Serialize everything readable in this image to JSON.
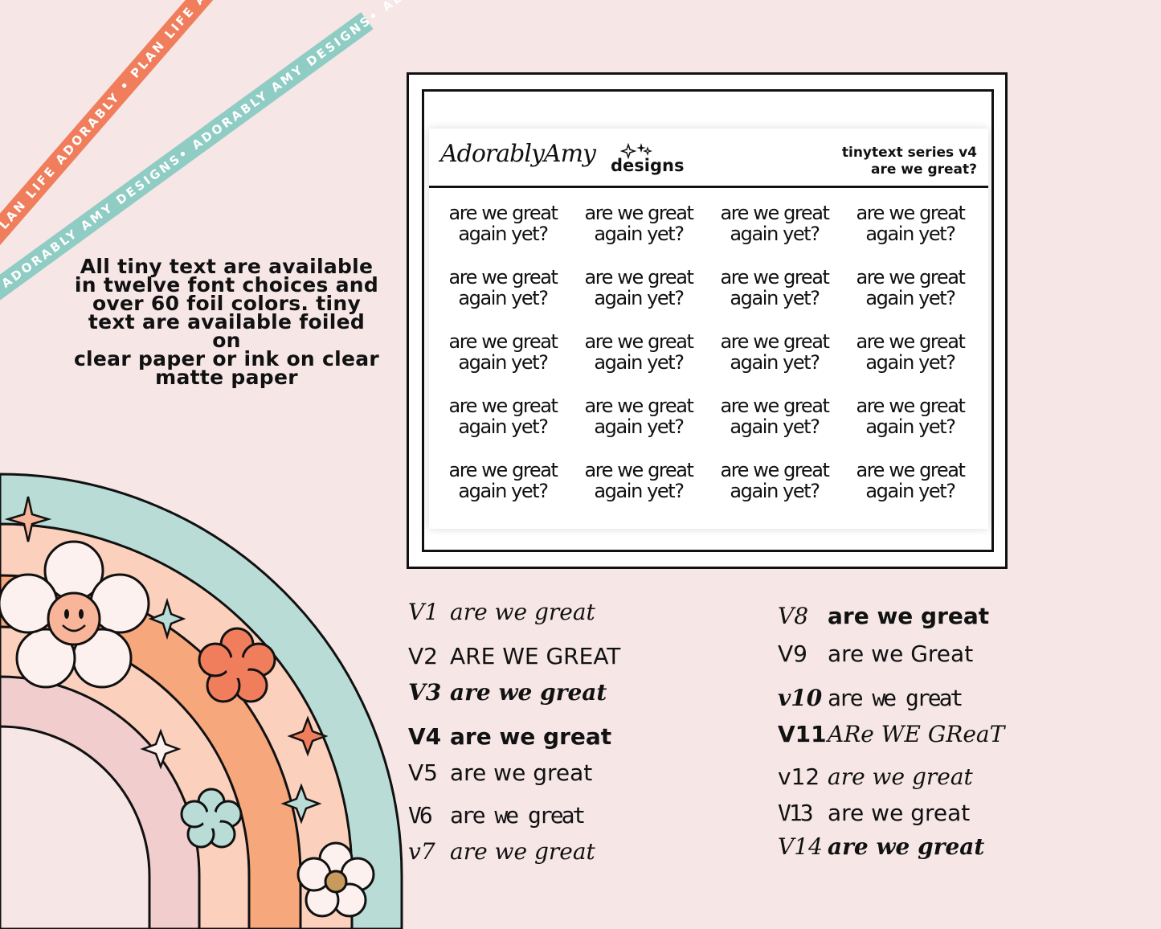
{
  "ribbons": {
    "orange": "PLAN LIFE ADORABLY • PLAN LIFE ADORABLY • PLAN LIFE ADORABLY",
    "teal": "ADORABLY AMY DESIGNS• ADORABLY AMY DESIGNS• ADORABLY AMY DESIGNS"
  },
  "info_text": "All tiny text are available\nin twelve font choices and\nover 60 foil colors.  tiny\ntext are available foiled on\nclear paper or ink on clear\nmatte paper",
  "sheet": {
    "logo_script": "AdorablyAmy",
    "logo_word": "designs",
    "series_line1": "tinytext series v4",
    "series_line2": "are we great?",
    "cells": [
      "are we great\nagain yet?",
      "are we great\nagain yet?",
      "are we great\nagain yet?",
      "are we great\nagain yet?",
      "are we great\nagain yet?",
      "are we great\nagain yet?",
      "are we great\nagain yet?",
      "are we great\nagain yet?",
      "are we great\nagain yet?",
      "are we great\nagain yet?",
      "are we great\nagain yet?",
      "are we great\nagain yet?",
      "are we great\nagain yet?",
      "are we great\nagain yet?",
      "are we great\nagain yet?",
      "are we great\nagain yet?",
      "are we great\nagain yet?",
      "are we great\nagain yet?",
      "are we great\nagain yet?",
      "are we great\nagain yet?"
    ]
  },
  "versions_left": [
    {
      "label": "V1",
      "sample": "are we great"
    },
    {
      "label": "V2",
      "sample": "ARE WE GREAT"
    },
    {
      "label": "V3",
      "sample": "are we great"
    },
    {
      "label": "V4",
      "sample": "are we great"
    },
    {
      "label": "V5",
      "sample": "are we great"
    },
    {
      "label": "V6",
      "sample": "are we great"
    },
    {
      "label": "v7",
      "sample": "are we great"
    }
  ],
  "versions_right": [
    {
      "label": "V8",
      "sample": "are we great"
    },
    {
      "label": "V9",
      "sample": "are we Great"
    },
    {
      "label": "v10",
      "sample": "are we great"
    },
    {
      "label": "V11",
      "sample": "ARe WE GReaT"
    },
    {
      "label": "v12",
      "sample": "are we great"
    },
    {
      "label": "V13",
      "sample": "are we great"
    },
    {
      "label": "V14",
      "sample": "are we great"
    }
  ],
  "colors": {
    "background": "#f6e6e6",
    "orange": "#f07e5c",
    "teal": "#8fccc3",
    "peach": "#f6a77c",
    "light_peach": "#fbd0bd",
    "pink": "#f1cdcd"
  }
}
